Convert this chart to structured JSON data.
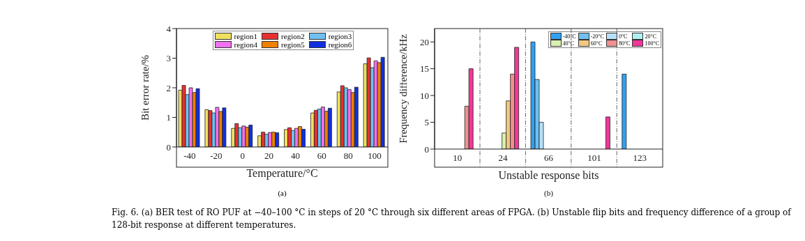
{
  "chart_data": [
    {
      "type": "bar",
      "title": "(a)",
      "xlabel": "Temperature/°C",
      "ylabel": "Bit error rate/%",
      "categories": [
        "-40",
        "-20",
        "0",
        "20",
        "40",
        "60",
        "80",
        "100"
      ],
      "ylim": [
        0,
        4
      ],
      "yticks": [
        0,
        1,
        2,
        3,
        4
      ],
      "legend": "top",
      "grid": false,
      "series": [
        {
          "name": "region1",
          "color": "#f0e060",
          "values": [
            1.92,
            1.26,
            0.63,
            0.38,
            0.59,
            1.15,
            1.86,
            2.81
          ]
        },
        {
          "name": "region2",
          "color": "#e83030",
          "values": [
            2.08,
            1.23,
            0.79,
            0.5,
            0.65,
            1.24,
            2.07,
            3.01
          ]
        },
        {
          "name": "region3",
          "color": "#70c0f0",
          "values": [
            1.77,
            1.15,
            0.65,
            0.43,
            0.56,
            1.28,
            2.0,
            2.68
          ]
        },
        {
          "name": "region4",
          "color": "#f070f0",
          "values": [
            2.0,
            1.34,
            0.71,
            0.49,
            0.63,
            1.35,
            1.94,
            2.91
          ]
        },
        {
          "name": "region5",
          "color": "#f08000",
          "values": [
            1.84,
            1.2,
            0.67,
            0.5,
            0.69,
            1.21,
            1.84,
            2.85
          ]
        },
        {
          "name": "region6",
          "color": "#1030e0",
          "values": [
            1.97,
            1.32,
            0.74,
            0.48,
            0.6,
            1.31,
            2.02,
            3.03
          ]
        }
      ],
      "annotations": [
        "Fig. 6. (a) BER test of RO PUF at −40–100 °C in steps of 20 °C through six different areas of FPGA. (b) Unstable flip bits and frequency difference of a group of 128-bit response at different temperatures."
      ]
    },
    {
      "type": "bar",
      "title": "(b)",
      "xlabel": "Unstable response bits",
      "ylabel": "Frequency difference/kHz",
      "categories": [
        "10",
        "24",
        "66",
        "101",
        "123"
      ],
      "ylim": [
        0,
        22.5
      ],
      "yticks": [
        0,
        5,
        10,
        15,
        20
      ],
      "legend": "top right",
      "grid": false,
      "series": [
        {
          "name": "-40°C",
          "color": "#30a0f0",
          "values": [
            null,
            null,
            20,
            null,
            14
          ]
        },
        {
          "name": "-20°C",
          "color": "#70c0f0",
          "values": [
            null,
            null,
            13,
            null,
            null
          ]
        },
        {
          "name": "0°C",
          "color": "#b8e0f8",
          "values": [
            null,
            null,
            5,
            null,
            null
          ]
        },
        {
          "name": "20°C",
          "color": "#b0f0f0",
          "values": [
            null,
            null,
            null,
            null,
            null
          ]
        },
        {
          "name": "40°C",
          "color": "#d8f0b0",
          "values": [
            null,
            3,
            null,
            null,
            null
          ]
        },
        {
          "name": "60°C",
          "color": "#f0c880",
          "values": [
            null,
            9,
            null,
            null,
            null
          ]
        },
        {
          "name": "80°C",
          "color": "#f09090",
          "values": [
            8,
            14,
            null,
            null,
            null
          ]
        },
        {
          "name": "100°C",
          "color": "#f03898",
          "values": [
            15,
            19,
            null,
            6,
            null
          ]
        }
      ]
    }
  ]
}
